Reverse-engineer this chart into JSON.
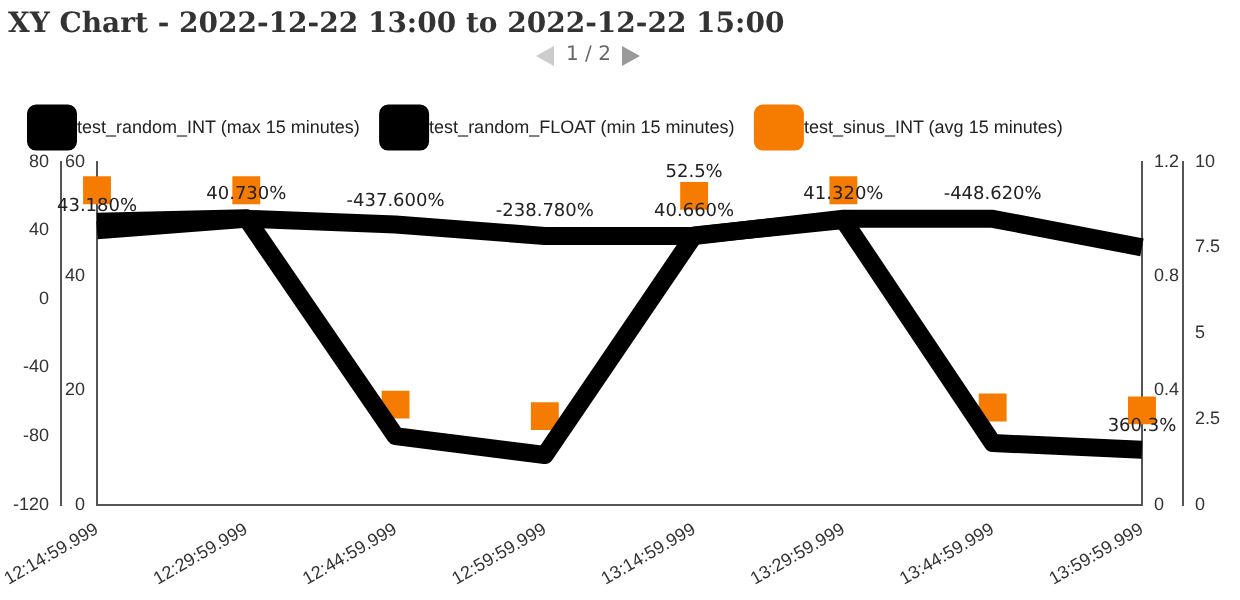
{
  "chart_data": {
    "type": "line",
    "title": "XY Chart - 2022-12-22 13:00 to 2022-12-22 15:00",
    "categories": [
      "12:14:59.999",
      "12:29:59.999",
      "12:44:59.999",
      "12:59:59.999",
      "13:14:59.999",
      "13:29:59.999",
      "13:44:59.999",
      "13:59:59.999"
    ],
    "series": [
      {
        "name": "test_random_INT (max 15 minutes)",
        "color": "#000000",
        "values": [
          45,
          47,
          -80,
          -91,
          37,
          46,
          -84,
          -88
        ]
      },
      {
        "name": "test_random_FLOAT (min 15 minutes)",
        "color": "#000000",
        "axis": "y2",
        "values": [
          48,
          50,
          49,
          47,
          47,
          50,
          50,
          45
        ]
      },
      {
        "name": "test_sinus_INT (avg 15 minutes)",
        "color": "#f57c00",
        "type": "scatter",
        "marker": "square",
        "axis": "y3",
        "values": [
          1.1,
          1.1,
          0.35,
          0.31,
          1.08,
          1.1,
          0.34,
          0.33
        ]
      }
    ],
    "ylim": [
      -120,
      80
    ],
    "yticks": [
      -120,
      -80,
      -40,
      0,
      40,
      80
    ],
    "y2lim": [
      0,
      60
    ],
    "y2ticks": [
      0,
      20,
      40,
      60
    ],
    "y3lim": [
      0,
      1.2
    ],
    "y3ticks": [
      0,
      0.4,
      0.8,
      1.2
    ],
    "grid": false,
    "legend": "top left",
    "marker": "none",
    "annotations": [
      "1 / 2",
      "0",
      "2.5",
      "5",
      "7.5",
      "10",
      {
        "text": "43.180%",
        "x": "12:14:59.999",
        "y": 40
      },
      {
        "text": "40.730%",
        "x": "12:29:59.999",
        "y": 47
      },
      {
        "text": "-437.600%",
        "x": "12:44:59.999",
        "y": 43
      },
      {
        "text": "-238.780%",
        "x": "12:59:59.999",
        "y": 37
      },
      {
        "text": "40.660%",
        "x": "13:14:59.999",
        "y": 37
      },
      {
        "text": "41.320%",
        "x": "13:29:59.999",
        "y": 47
      },
      {
        "text": "-448.620%",
        "x": "13:44:59.999",
        "y": 47
      },
      {
        "text": "360.3%",
        "x": "13:59:59.999",
        "y": -88
      },
      {
        "text": "52.5%",
        "x": "13:14:59.999",
        "y": 60
      }
    ]
  }
}
